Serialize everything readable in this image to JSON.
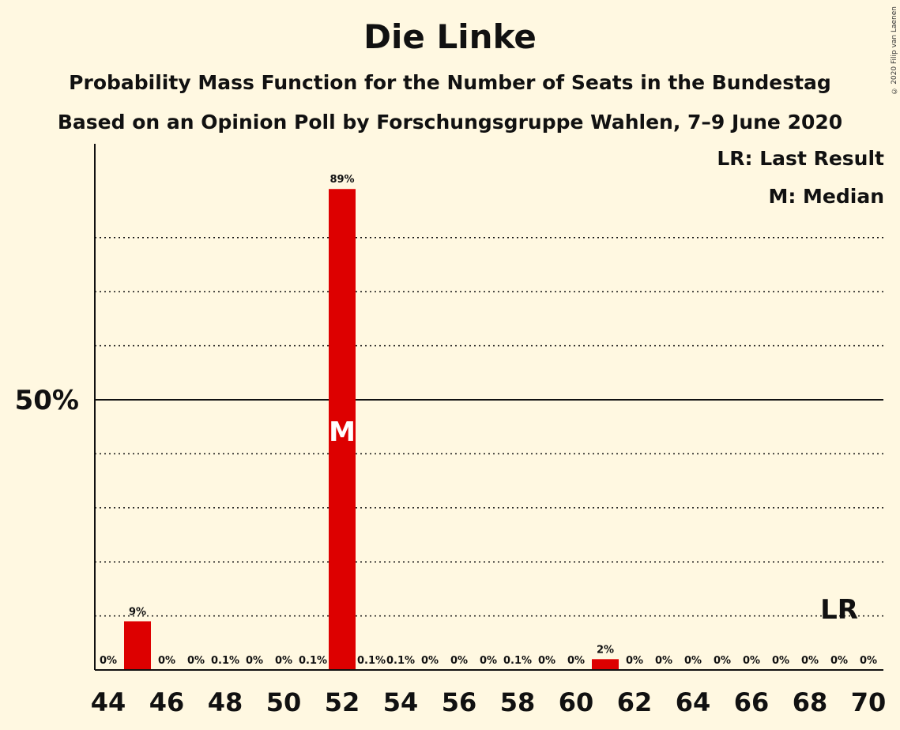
{
  "chart_data": {
    "type": "bar",
    "title": "Die Linke",
    "subtitle": "Probability Mass Function for the Number of Seats in the Bundestag",
    "subtitle2": "Based on an Opinion Poll by Forschungsgruppe Wahlen, 7–9 June 2020",
    "copyright": "© 2020 Filip van Laenen",
    "legend": [
      "LR: Last Result",
      "M: Median"
    ],
    "ylabel_tick": "50%",
    "ylim": [
      0,
      0.96
    ],
    "x": [
      44,
      45,
      46,
      47,
      48,
      49,
      50,
      51,
      52,
      53,
      54,
      55,
      56,
      57,
      58,
      59,
      60,
      61,
      62,
      63,
      64,
      65,
      66,
      67,
      68,
      69,
      70
    ],
    "xtick_labels": [
      "44",
      "46",
      "48",
      "50",
      "52",
      "54",
      "56",
      "58",
      "60",
      "62",
      "64",
      "66",
      "68",
      "70"
    ],
    "values": [
      0,
      0.09,
      0,
      0,
      0.001,
      0,
      0,
      0.001,
      0.89,
      0.001,
      0.001,
      0,
      0,
      0,
      0.001,
      0,
      0,
      0.02,
      0,
      0,
      0,
      0,
      0,
      0,
      0,
      0,
      0
    ],
    "labels": [
      "0%",
      "9%",
      "0%",
      "0%",
      "0.1%",
      "0%",
      "0%",
      "0.1%",
      "89%",
      "0.1%",
      "0.1%",
      "0%",
      "0%",
      "0%",
      "0.1%",
      "0%",
      "0%",
      "2%",
      "0%",
      "0%",
      "0%",
      "0%",
      "0%",
      "0%",
      "0%",
      "0%",
      "0%"
    ],
    "median_seat": 52,
    "median_label": "M",
    "last_result_seat": 69,
    "last_result_label": "LR",
    "bar_color": "#DD0000",
    "grid": "dotted every 10%, solid at 50%"
  }
}
